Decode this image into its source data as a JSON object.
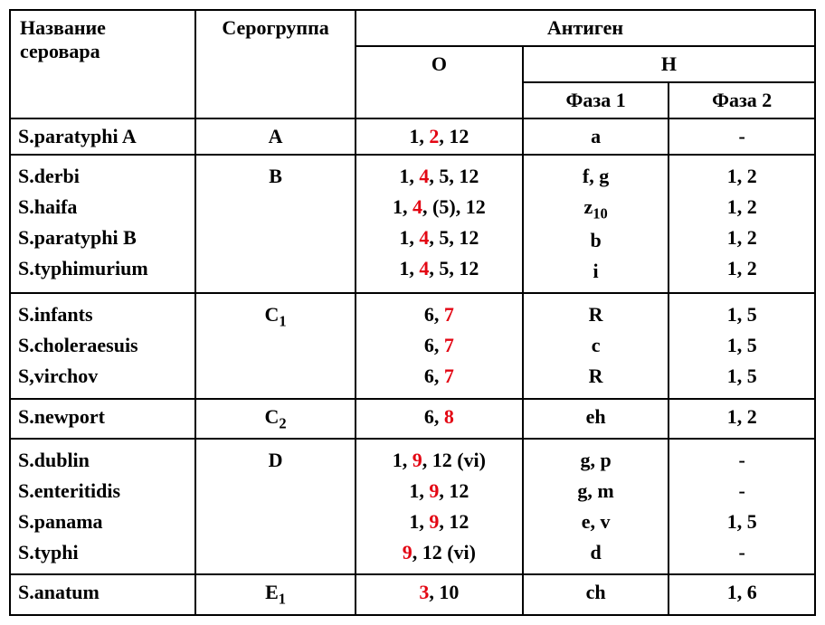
{
  "colors": {
    "text": "#000000",
    "highlight": "#e30613",
    "border": "#000000",
    "background": "#ffffff"
  },
  "fonts": {
    "family": "Times New Roman",
    "base_size_pt": 22,
    "header_weight": "bold",
    "body_weight": "bold"
  },
  "headers": {
    "serovar_name": "Название серовара",
    "serogroup": "Серогруппа",
    "antigen": "Антиген",
    "o": "O",
    "h": "H",
    "phase1": "Фаза 1",
    "phase2": "Фаза 2"
  },
  "groups": [
    {
      "serogroup_html": "A",
      "rows": [
        {
          "name": "S.paratyphi A",
          "o_html": "1, <span class=\"red\">2</span>, 12",
          "h1_html": "a",
          "h2_html": "-"
        }
      ]
    },
    {
      "serogroup_html": "B",
      "rows": [
        {
          "name": "S.derbi",
          "o_html": "1, <span class=\"red\">4</span>, 5, 12",
          "h1_html": "f, g",
          "h2_html": "1, 2"
        },
        {
          "name": "S.haifa",
          "o_html": "1, <span class=\"red\">4</span>, (5), 12",
          "h1_html": "z<sub>10</sub>",
          "h2_html": "1, 2"
        },
        {
          "name": "S.paratyphi B",
          "o_html": "1, <span class=\"red\">4</span>, 5, 12",
          "h1_html": "b",
          "h2_html": "1, 2"
        },
        {
          "name": "S.typhimurium",
          "o_html": "1, <span class=\"red\">4</span>, 5, 12",
          "h1_html": "i",
          "h2_html": "1, 2"
        }
      ]
    },
    {
      "serogroup_html": "C<sub>1</sub>",
      "rows": [
        {
          "name": "S.infants",
          "o_html": "6, <span class=\"red\">7</span>",
          "h1_html": "R",
          "h2_html": "1, 5"
        },
        {
          "name": "S.choleraesuis",
          "o_html": "6, <span class=\"red\">7</span>",
          "h1_html": "c",
          "h2_html": "1, 5"
        },
        {
          "name": "S,virchov",
          "o_html": "6, <span class=\"red\">7</span>",
          "h1_html": "R",
          "h2_html": "1, 5"
        }
      ]
    },
    {
      "serogroup_html": "C<sub>2</sub>",
      "rows": [
        {
          "name": "S.newport",
          "o_html": "6, <span class=\"red\">8</span>",
          "h1_html": "eh",
          "h2_html": "1, 2"
        }
      ]
    },
    {
      "serogroup_html": "D",
      "rows": [
        {
          "name": "S.dublin",
          "o_html": "1, <span class=\"red\">9</span>, 12 (vi)",
          "h1_html": "g, p",
          "h2_html": "-"
        },
        {
          "name": "S.enteritidis",
          "o_html": "1, <span class=\"red\">9</span>, 12",
          "h1_html": "g, m",
          "h2_html": "-"
        },
        {
          "name": "S.panama",
          "o_html": "1, <span class=\"red\">9</span>, 12",
          "h1_html": "e, v",
          "h2_html": "1, 5"
        },
        {
          "name": "S.typhi",
          "o_html": "<span class=\"red\">9</span>, 12 (vi)",
          "h1_html": "d",
          "h2_html": "-"
        }
      ]
    },
    {
      "serogroup_html": "E<sub>1</sub>",
      "rows": [
        {
          "name": "S.anatum",
          "o_html": "<span class=\"red\">3</span>, 10",
          "h1_html": "ch",
          "h2_html": "1, 6"
        }
      ]
    }
  ]
}
